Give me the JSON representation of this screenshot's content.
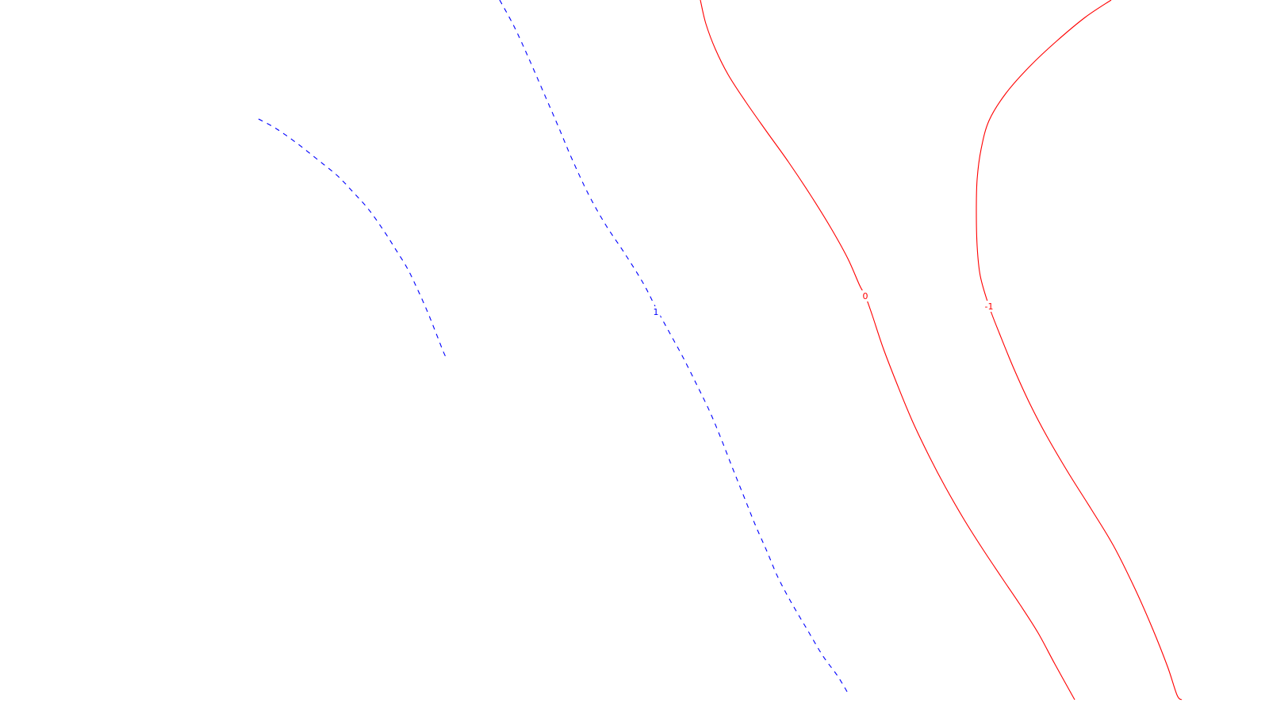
{
  "chart_data": {
    "type": "contour",
    "title": "",
    "xlabel": "",
    "ylabel": "",
    "levels": [
      {
        "level": 1,
        "label": "1",
        "color": "#0000ff",
        "style": "dashed",
        "segments": [
          {
            "points": [
              [
                326,
                150
              ],
              [
                348,
                162
              ],
              [
                375,
                181
              ],
              [
                404,
                204
              ],
              [
                426,
                222
              ],
              [
                445,
                242
              ],
              [
                464,
                263
              ],
              [
                482,
                288
              ],
              [
                498,
                313
              ],
              [
                514,
                339
              ],
              [
                527,
                366
              ],
              [
                539,
                393
              ],
              [
                549,
                418
              ],
              [
                558,
                441
              ],
              [
                563,
                452
              ]
            ]
          },
          {
            "points": [
              [
                630,
                0
              ],
              [
                648,
                33
              ],
              [
                666,
                72
              ],
              [
                686,
                118
              ],
              [
                705,
                162
              ],
              [
                721,
                200
              ],
              [
                742,
                245
              ],
              [
                764,
                284
              ],
              [
                788,
                320
              ],
              [
                811,
                357
              ],
              [
                827,
                388
              ],
              [
                844,
                419
              ],
              [
                862,
                452
              ],
              [
                879,
                486
              ],
              [
                895,
                519
              ],
              [
                910,
                555
              ],
              [
                924,
                591
              ],
              [
                938,
                626
              ],
              [
                952,
                661
              ],
              [
                967,
                695
              ],
              [
                981,
                728
              ],
              [
                998,
                760
              ],
              [
                1018,
                794
              ],
              [
                1037,
                826
              ],
              [
                1056,
                852
              ],
              [
                1071,
                877
              ]
            ],
            "label_at": [
              827,
              393
            ]
          }
        ]
      },
      {
        "level": 0,
        "label": "0",
        "color": "#ff0000",
        "style": "solid",
        "segments": [
          {
            "points": [
              [
                883,
                0
              ],
              [
                890,
                30
              ],
              [
                902,
                62
              ],
              [
                918,
                94
              ],
              [
                940,
                128
              ],
              [
                966,
                165
              ],
              [
                994,
                204
              ],
              [
                1022,
                246
              ],
              [
                1048,
                288
              ],
              [
                1069,
                326
              ],
              [
                1084,
                360
              ],
              [
                1091,
                373
              ],
              [
                1100,
                398
              ],
              [
                1114,
                440
              ],
              [
                1131,
                484
              ],
              [
                1150,
                530
              ],
              [
                1172,
                576
              ],
              [
                1192,
                614
              ],
              [
                1215,
                654
              ],
              [
                1239,
                692
              ],
              [
                1263,
                728
              ],
              [
                1286,
                762
              ],
              [
                1309,
                798
              ],
              [
                1330,
                837
              ],
              [
                1355,
                882
              ]
            ],
            "label_at": [
              1091,
              373
            ]
          }
        ]
      },
      {
        "level": -1,
        "label": "-1",
        "color": "#ff0000",
        "style": "solid",
        "segments": [
          {
            "points": [
              [
                1401,
                0
              ],
              [
                1368,
                22
              ],
              [
                1332,
                52
              ],
              [
                1298,
                84
              ],
              [
                1268,
                118
              ],
              [
                1247,
                152
              ],
              [
                1237,
                188
              ],
              [
                1232,
                226
              ],
              [
                1231,
                266
              ],
              [
                1232,
                310
              ],
              [
                1236,
                348
              ],
              [
                1247,
                386
              ],
              [
                1260,
                420
              ],
              [
                1278,
                464
              ],
              [
                1299,
                510
              ],
              [
                1320,
                550
              ],
              [
                1347,
                596
              ],
              [
                1376,
                642
              ],
              [
                1404,
                688
              ],
              [
                1430,
                740
              ],
              [
                1453,
                792
              ],
              [
                1472,
                840
              ],
              [
                1484,
                876
              ],
              [
                1490,
                882
              ]
            ],
            "label_at": [
              1247,
              386
            ]
          }
        ]
      }
    ]
  }
}
